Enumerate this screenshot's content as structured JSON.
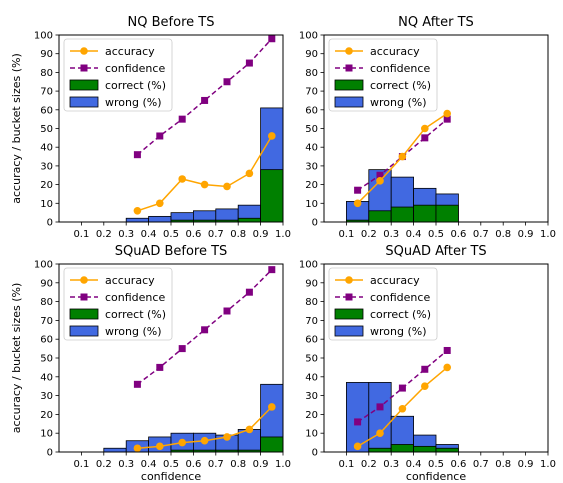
{
  "colors": {
    "accuracy": "#FFA500",
    "confidence": "#800080",
    "correct": "#008000",
    "wrong": "#4169E1"
  },
  "legend_labels": [
    "accuracy",
    "confidence",
    "correct (%)",
    "wrong (%)"
  ],
  "chart_data": [
    {
      "type": "bar",
      "title": "NQ Before TS",
      "xlabel": "",
      "ylabel": "accuracy / bucket sizes (%)",
      "xlim": [
        0,
        1.0
      ],
      "ylim": [
        0,
        100
      ],
      "xticks": [
        "0.1",
        "0.2",
        "0.3",
        "0.4",
        "0.5",
        "0.6",
        "0.7",
        "0.8",
        "0.9",
        "1.0"
      ],
      "yticks": [
        "0",
        "10",
        "20",
        "30",
        "40",
        "50",
        "60",
        "70",
        "80",
        "90",
        "100"
      ],
      "legend": "top-left",
      "bins": [
        0.35,
        0.45,
        0.55,
        0.65,
        0.75,
        0.85,
        0.95
      ],
      "bucket_total": [
        2,
        3,
        5,
        6,
        7,
        9,
        61
      ],
      "bucket_correct": [
        0,
        0,
        1,
        1,
        1,
        2,
        28
      ],
      "accuracy": [
        6,
        10,
        23,
        20,
        19,
        26,
        46
      ],
      "confidence": [
        36,
        46,
        55,
        65,
        75,
        85,
        98
      ]
    },
    {
      "type": "bar",
      "title": "NQ After TS",
      "xlabel": "",
      "ylabel": "",
      "xlim": [
        0,
        1.0
      ],
      "ylim": [
        0,
        100
      ],
      "xticks": [
        "0.1",
        "0.2",
        "0.3",
        "0.4",
        "0.5",
        "0.6",
        "0.7",
        "0.8",
        "0.9",
        "1.0"
      ],
      "yticks": [
        "0",
        "10",
        "20",
        "30",
        "40",
        "50",
        "60",
        "70",
        "80",
        "90",
        "100"
      ],
      "legend": "top-left",
      "bins": [
        0.15,
        0.25,
        0.35,
        0.45,
        0.55
      ],
      "bucket_total": [
        11,
        28,
        24,
        18,
        15
      ],
      "bucket_correct": [
        1,
        6,
        8,
        9,
        9
      ],
      "accuracy": [
        10,
        22,
        35,
        50,
        58
      ],
      "confidence": [
        17,
        25,
        35,
        45,
        55
      ]
    },
    {
      "type": "bar",
      "title": "SQuAD Before TS",
      "xlabel": "confidence",
      "ylabel": "accuracy / bucket sizes (%)",
      "xlim": [
        0,
        1.0
      ],
      "ylim": [
        0,
        100
      ],
      "xticks": [
        "0.1",
        "0.2",
        "0.3",
        "0.4",
        "0.5",
        "0.6",
        "0.7",
        "0.8",
        "0.9",
        "1.0"
      ],
      "yticks": [
        "0",
        "10",
        "20",
        "30",
        "40",
        "50",
        "60",
        "70",
        "80",
        "90",
        "100"
      ],
      "legend": "top-left",
      "bins": [
        0.25,
        0.35,
        0.45,
        0.55,
        0.65,
        0.75,
        0.85,
        0.95
      ],
      "bucket_total": [
        2,
        6,
        8,
        10,
        10,
        9,
        12,
        36
      ],
      "bucket_correct": [
        0,
        0,
        0,
        1,
        1,
        1,
        1,
        8
      ],
      "accuracy": [
        null,
        2,
        3,
        5,
        6,
        8,
        12,
        24
      ],
      "confidence": [
        null,
        36,
        45,
        55,
        65,
        75,
        85,
        97
      ]
    },
    {
      "type": "bar",
      "title": "SQuAD After TS",
      "xlabel": "confidence",
      "ylabel": "",
      "xlim": [
        0,
        1.0
      ],
      "ylim": [
        0,
        100
      ],
      "xticks": [
        "0.1",
        "0.2",
        "0.3",
        "0.4",
        "0.5",
        "0.6",
        "0.7",
        "0.8",
        "0.9",
        "1.0"
      ],
      "yticks": [
        "0",
        "10",
        "20",
        "30",
        "40",
        "50",
        "60",
        "70",
        "80",
        "90",
        "100"
      ],
      "legend": "top-left",
      "bins": [
        0.15,
        0.25,
        0.35,
        0.45,
        0.55
      ],
      "bucket_total": [
        37,
        37,
        19,
        9,
        4
      ],
      "bucket_correct": [
        0,
        2,
        4,
        3,
        2
      ],
      "accuracy": [
        3,
        10,
        23,
        35,
        45
      ],
      "confidence": [
        16,
        24,
        34,
        44,
        54
      ]
    }
  ]
}
